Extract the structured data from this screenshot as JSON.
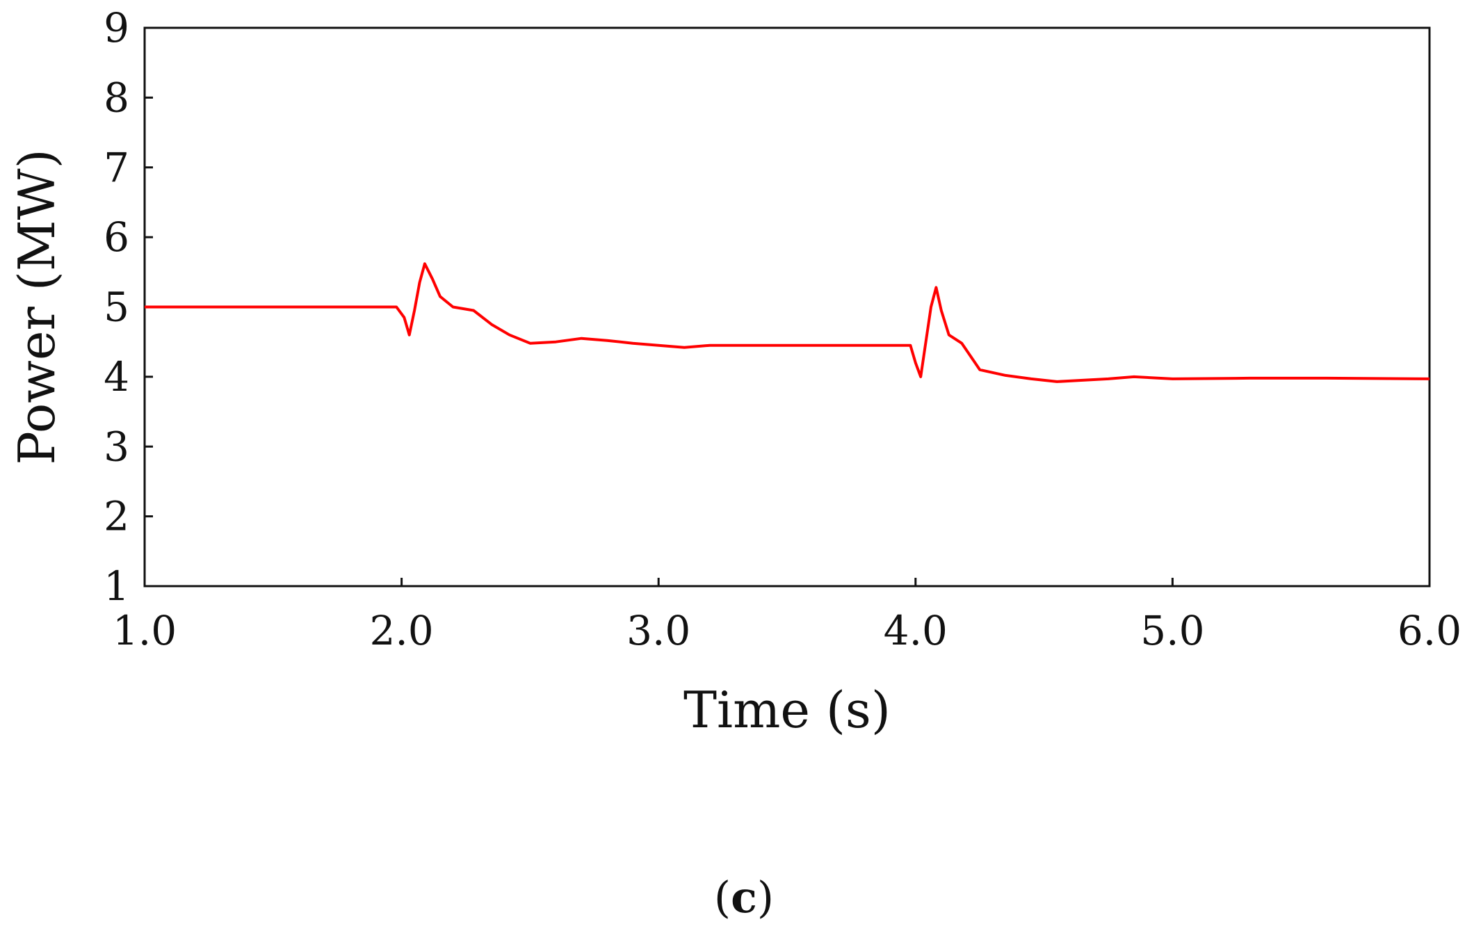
{
  "caption": {
    "open": "(",
    "letter": "c",
    "close": ")"
  },
  "chart_data": {
    "type": "line",
    "title": "",
    "xlabel": "Time (s)",
    "ylabel": "Power (MW)",
    "xlim": [
      1.0,
      6.0
    ],
    "ylim": [
      1,
      9
    ],
    "x_ticks": [
      "1.0",
      "2.0",
      "3.0",
      "4.0",
      "5.0",
      "6.0"
    ],
    "y_ticks": [
      "1",
      "2",
      "3",
      "4",
      "5",
      "6",
      "7",
      "8",
      "9"
    ],
    "grid": false,
    "legend": "none",
    "line_color": "#ff0000",
    "series": [
      {
        "x": [
          1.0,
          1.5,
          1.98,
          2.01,
          2.03,
          2.05,
          2.07,
          2.09,
          2.12,
          2.15,
          2.2,
          2.28,
          2.35,
          2.42,
          2.5,
          2.6,
          2.7,
          2.8,
          2.9,
          3.0,
          3.1,
          3.2,
          3.5,
          3.8,
          3.98,
          4.0,
          4.02,
          4.04,
          4.06,
          4.08,
          4.1,
          4.13,
          4.18,
          4.25,
          4.35,
          4.45,
          4.55,
          4.65,
          4.75,
          4.85,
          5.0,
          5.3,
          5.6,
          6.0
        ],
        "y": [
          5.0,
          5.0,
          5.0,
          4.85,
          4.6,
          4.95,
          5.35,
          5.62,
          5.4,
          5.15,
          5.0,
          4.95,
          4.75,
          4.6,
          4.48,
          4.5,
          4.55,
          4.52,
          4.48,
          4.45,
          4.42,
          4.45,
          4.45,
          4.45,
          4.45,
          4.2,
          4.0,
          4.5,
          5.0,
          5.28,
          4.95,
          4.6,
          4.48,
          4.1,
          4.02,
          3.97,
          3.93,
          3.95,
          3.97,
          4.0,
          3.97,
          3.98,
          3.98,
          3.97
        ]
      }
    ]
  }
}
